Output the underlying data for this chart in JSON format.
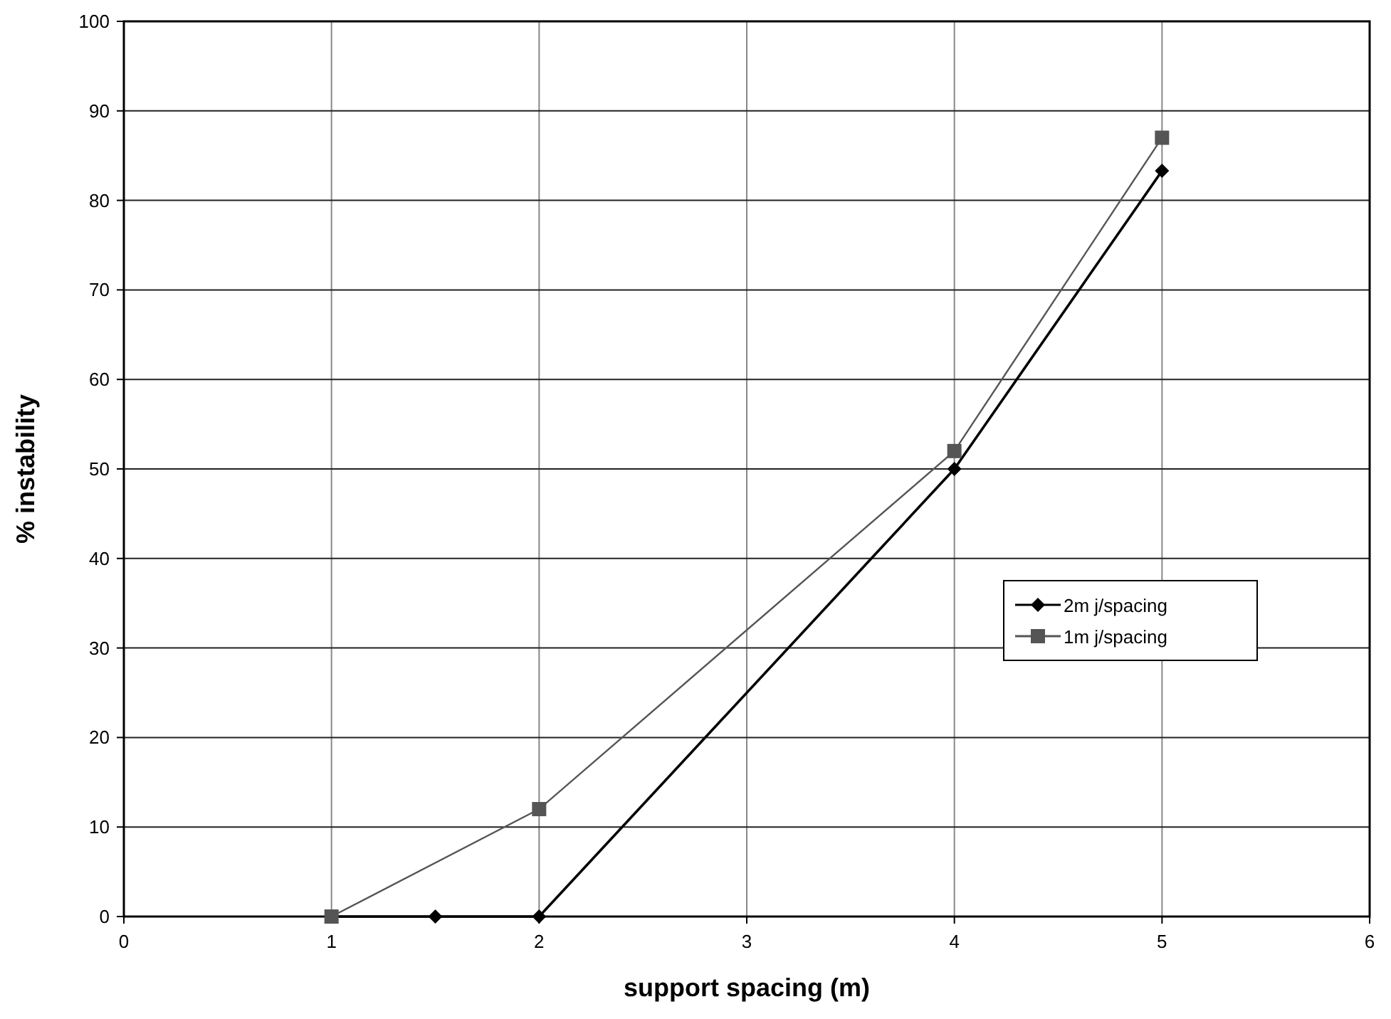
{
  "chart_data": {
    "type": "line",
    "xlabel": "support spacing (m)",
    "ylabel": "% instability",
    "xlim": [
      0,
      6
    ],
    "xticks": [
      0,
      1,
      2,
      3,
      4,
      5,
      6
    ],
    "ylim": [
      0,
      100
    ],
    "yticks": [
      0,
      10,
      20,
      30,
      40,
      50,
      60,
      70,
      80,
      90,
      100
    ],
    "grid": true,
    "legend": "right",
    "series": [
      {
        "name": "2m j/spacing",
        "color": "#000000",
        "marker": "diamond",
        "x": [
          1,
          1.5,
          2,
          4,
          5
        ],
        "values": [
          0,
          0,
          0,
          50,
          83.3
        ]
      },
      {
        "name": "1m j/spacing",
        "color": "#555555",
        "marker": "square",
        "x": [
          1,
          2,
          4,
          5
        ],
        "values": [
          0,
          12,
          52,
          87
        ]
      }
    ]
  }
}
